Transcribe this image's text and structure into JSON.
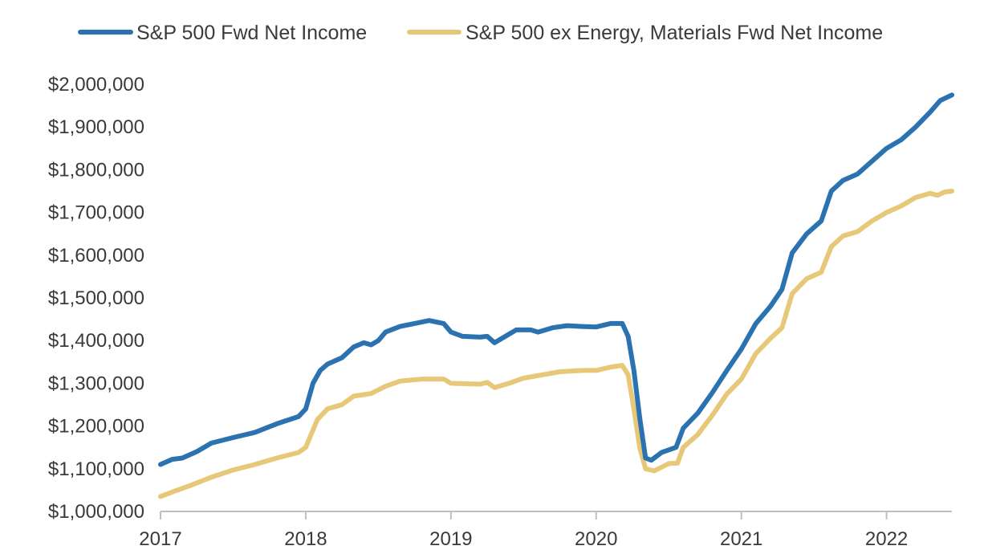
{
  "chart_data": {
    "type": "line",
    "title": "",
    "xlabel": "",
    "ylabel": "",
    "ylim": [
      1000000,
      2000000
    ],
    "xlim": [
      2017.0,
      2022.45
    ],
    "legend_position": "top",
    "grid": false,
    "y_ticks": [
      {
        "value": 1000000,
        "label": "$1,000,000"
      },
      {
        "value": 1100000,
        "label": "$1,100,000"
      },
      {
        "value": 1200000,
        "label": "$1,200,000"
      },
      {
        "value": 1300000,
        "label": "$1,300,000"
      },
      {
        "value": 1400000,
        "label": "$1,400,000"
      },
      {
        "value": 1500000,
        "label": "$1,500,000"
      },
      {
        "value": 1600000,
        "label": "$1,600,000"
      },
      {
        "value": 1700000,
        "label": "$1,700,000"
      },
      {
        "value": 1800000,
        "label": "$1,800,000"
      },
      {
        "value": 1900000,
        "label": "$1,900,000"
      },
      {
        "value": 2000000,
        "label": "$2,000,000"
      }
    ],
    "x_ticks": [
      {
        "value": 2017,
        "label": "2017"
      },
      {
        "value": 2018,
        "label": "2018"
      },
      {
        "value": 2019,
        "label": "2019"
      },
      {
        "value": 2020,
        "label": "2020"
      },
      {
        "value": 2021,
        "label": "2021"
      },
      {
        "value": 2022,
        "label": "2022"
      }
    ],
    "series": [
      {
        "name": "S&P 500 Fwd Net Income",
        "color": "#2B72B0",
        "points": [
          [
            2017.0,
            1110000
          ],
          [
            2017.08,
            1122000
          ],
          [
            2017.15,
            1125000
          ],
          [
            2017.25,
            1140000
          ],
          [
            2017.35,
            1160000
          ],
          [
            2017.5,
            1173000
          ],
          [
            2017.65,
            1185000
          ],
          [
            2017.8,
            1205000
          ],
          [
            2017.95,
            1222000
          ],
          [
            2018.0,
            1240000
          ],
          [
            2018.05,
            1300000
          ],
          [
            2018.1,
            1330000
          ],
          [
            2018.15,
            1345000
          ],
          [
            2018.25,
            1360000
          ],
          [
            2018.33,
            1385000
          ],
          [
            2018.4,
            1395000
          ],
          [
            2018.45,
            1390000
          ],
          [
            2018.5,
            1400000
          ],
          [
            2018.55,
            1420000
          ],
          [
            2018.65,
            1433000
          ],
          [
            2018.75,
            1440000
          ],
          [
            2018.85,
            1447000
          ],
          [
            2018.95,
            1440000
          ],
          [
            2019.0,
            1420000
          ],
          [
            2019.08,
            1410000
          ],
          [
            2019.2,
            1408000
          ],
          [
            2019.25,
            1410000
          ],
          [
            2019.3,
            1395000
          ],
          [
            2019.35,
            1405000
          ],
          [
            2019.45,
            1425000
          ],
          [
            2019.55,
            1425000
          ],
          [
            2019.6,
            1420000
          ],
          [
            2019.7,
            1430000
          ],
          [
            2019.8,
            1435000
          ],
          [
            2019.9,
            1433000
          ],
          [
            2020.0,
            1432000
          ],
          [
            2020.1,
            1440000
          ],
          [
            2020.18,
            1440000
          ],
          [
            2020.22,
            1410000
          ],
          [
            2020.26,
            1330000
          ],
          [
            2020.3,
            1220000
          ],
          [
            2020.34,
            1125000
          ],
          [
            2020.38,
            1120000
          ],
          [
            2020.45,
            1138000
          ],
          [
            2020.55,
            1150000
          ],
          [
            2020.6,
            1195000
          ],
          [
            2020.7,
            1230000
          ],
          [
            2020.8,
            1278000
          ],
          [
            2020.9,
            1330000
          ],
          [
            2021.0,
            1380000
          ],
          [
            2021.1,
            1440000
          ],
          [
            2021.2,
            1480000
          ],
          [
            2021.28,
            1520000
          ],
          [
            2021.35,
            1605000
          ],
          [
            2021.45,
            1650000
          ],
          [
            2021.55,
            1680000
          ],
          [
            2021.62,
            1750000
          ],
          [
            2021.7,
            1775000
          ],
          [
            2021.8,
            1790000
          ],
          [
            2021.9,
            1820000
          ],
          [
            2022.0,
            1850000
          ],
          [
            2022.1,
            1870000
          ],
          [
            2022.2,
            1900000
          ],
          [
            2022.3,
            1935000
          ],
          [
            2022.37,
            1962000
          ],
          [
            2022.45,
            1975000
          ]
        ]
      },
      {
        "name": "S&P 500 ex Energy, Materials Fwd Net Income",
        "color": "#E6C878",
        "points": [
          [
            2017.0,
            1035000
          ],
          [
            2017.1,
            1048000
          ],
          [
            2017.2,
            1060000
          ],
          [
            2017.35,
            1080000
          ],
          [
            2017.5,
            1097000
          ],
          [
            2017.65,
            1110000
          ],
          [
            2017.8,
            1125000
          ],
          [
            2017.95,
            1138000
          ],
          [
            2018.0,
            1150000
          ],
          [
            2018.08,
            1215000
          ],
          [
            2018.15,
            1240000
          ],
          [
            2018.25,
            1250000
          ],
          [
            2018.33,
            1270000
          ],
          [
            2018.45,
            1276000
          ],
          [
            2018.55,
            1293000
          ],
          [
            2018.65,
            1305000
          ],
          [
            2018.8,
            1310000
          ],
          [
            2018.95,
            1310000
          ],
          [
            2019.0,
            1300000
          ],
          [
            2019.2,
            1298000
          ],
          [
            2019.25,
            1302000
          ],
          [
            2019.3,
            1290000
          ],
          [
            2019.4,
            1300000
          ],
          [
            2019.5,
            1312000
          ],
          [
            2019.6,
            1318000
          ],
          [
            2019.75,
            1327000
          ],
          [
            2019.9,
            1330000
          ],
          [
            2020.0,
            1330000
          ],
          [
            2020.1,
            1338000
          ],
          [
            2020.18,
            1342000
          ],
          [
            2020.22,
            1320000
          ],
          [
            2020.26,
            1240000
          ],
          [
            2020.3,
            1150000
          ],
          [
            2020.34,
            1100000
          ],
          [
            2020.4,
            1095000
          ],
          [
            2020.5,
            1112000
          ],
          [
            2020.56,
            1113000
          ],
          [
            2020.6,
            1150000
          ],
          [
            2020.7,
            1180000
          ],
          [
            2020.8,
            1225000
          ],
          [
            2020.9,
            1275000
          ],
          [
            2021.0,
            1310000
          ],
          [
            2021.1,
            1370000
          ],
          [
            2021.2,
            1405000
          ],
          [
            2021.28,
            1430000
          ],
          [
            2021.35,
            1510000
          ],
          [
            2021.45,
            1545000
          ],
          [
            2021.55,
            1560000
          ],
          [
            2021.62,
            1620000
          ],
          [
            2021.7,
            1645000
          ],
          [
            2021.8,
            1655000
          ],
          [
            2021.9,
            1680000
          ],
          [
            2022.0,
            1700000
          ],
          [
            2022.1,
            1715000
          ],
          [
            2022.2,
            1735000
          ],
          [
            2022.3,
            1745000
          ],
          [
            2022.35,
            1740000
          ],
          [
            2022.4,
            1748000
          ],
          [
            2022.45,
            1750000
          ]
        ]
      }
    ]
  }
}
